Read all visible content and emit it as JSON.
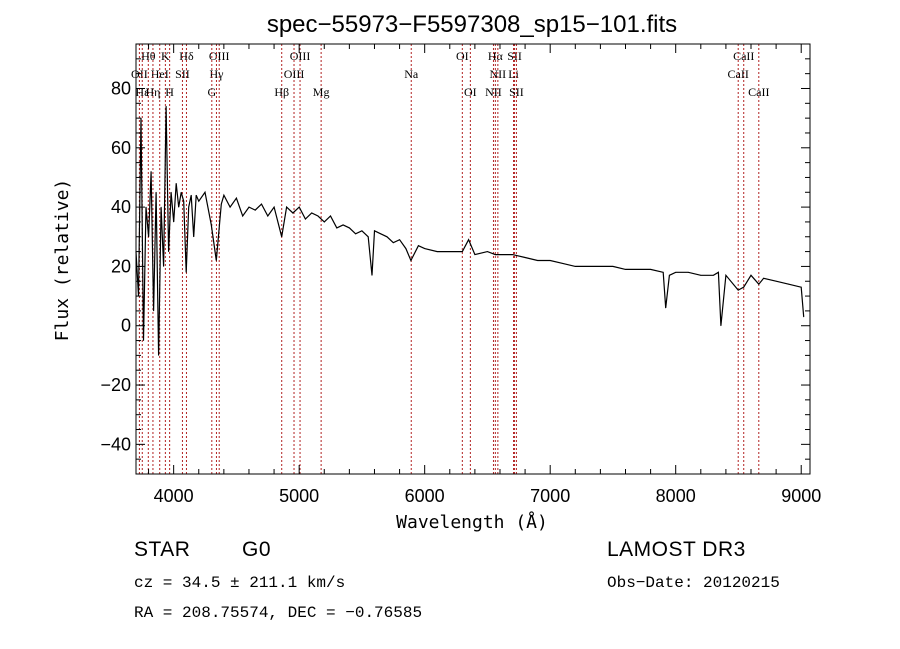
{
  "chart_data": {
    "type": "line",
    "title": "spec−55973−F5597308_sp15−101.fits",
    "xlabel": "Wavelength (Å)",
    "ylabel": "Flux (relative)",
    "xlim": [
      3700,
      9070
    ],
    "ylim": [
      -50,
      95
    ],
    "x_ticks": [
      4000,
      5000,
      6000,
      7000,
      8000,
      9000
    ],
    "x_tick_labels": [
      "4000",
      "5000",
      "6000",
      "7000",
      "8000",
      "9000"
    ],
    "y_ticks": [
      -40,
      -20,
      0,
      20,
      40,
      60,
      80
    ],
    "y_tick_labels": [
      "−40",
      "−20",
      "0",
      "20",
      "40",
      "60",
      "80"
    ],
    "grid": false,
    "series": [
      {
        "name": "flux",
        "x": [
          3700,
          3720,
          3740,
          3760,
          3780,
          3800,
          3820,
          3840,
          3860,
          3880,
          3900,
          3920,
          3940,
          3960,
          3980,
          4000,
          4020,
          4040,
          4060,
          4080,
          4100,
          4120,
          4140,
          4160,
          4180,
          4200,
          4250,
          4300,
          4340,
          4380,
          4400,
          4450,
          4500,
          4550,
          4600,
          4650,
          4700,
          4750,
          4800,
          4861,
          4900,
          4950,
          5000,
          5050,
          5100,
          5150,
          5200,
          5250,
          5300,
          5350,
          5400,
          5450,
          5500,
          5550,
          5580,
          5600,
          5650,
          5700,
          5750,
          5800,
          5850,
          5890,
          5950,
          6000,
          6100,
          6200,
          6300,
          6350,
          6400,
          6500,
          6563,
          6600,
          6700,
          6800,
          6900,
          7000,
          7100,
          7200,
          7300,
          7400,
          7500,
          7600,
          7700,
          7800,
          7900,
          7920,
          7950,
          8000,
          8100,
          8200,
          8300,
          8340,
          8360,
          8400,
          8498,
          8542,
          8600,
          8662,
          8700,
          8800,
          8900,
          9000,
          9020
        ],
        "y": [
          25,
          10,
          70,
          -5,
          40,
          30,
          52,
          5,
          45,
          -10,
          40,
          20,
          74,
          25,
          45,
          35,
          48,
          40,
          45,
          42,
          18,
          40,
          44,
          30,
          44,
          42,
          45,
          34,
          22,
          41,
          44,
          40,
          43,
          37,
          40,
          39,
          41,
          37,
          40,
          30,
          40,
          38,
          40,
          36,
          38,
          37,
          35,
          37,
          33,
          34,
          33,
          31,
          32,
          30,
          17,
          32,
          31,
          30,
          28,
          29,
          26,
          22,
          27,
          26,
          25,
          25,
          25,
          29,
          24,
          25,
          24,
          24,
          24,
          23,
          22,
          22,
          21,
          20,
          20,
          20,
          20,
          19,
          19,
          19,
          18,
          6,
          17,
          18,
          18,
          17,
          17,
          18,
          0,
          17,
          12,
          13,
          17,
          14,
          16,
          15,
          14,
          13,
          3
        ]
      }
    ],
    "line_markers": [
      {
        "name": "Hθ",
        "wavelength": 3798,
        "row": 0
      },
      {
        "name": "K",
        "wavelength": 3934,
        "row": 0
      },
      {
        "name": "Hδ",
        "wavelength": 4102,
        "row": 0
      },
      {
        "name": "OIII",
        "wavelength": 4363,
        "row": 0
      },
      {
        "name": "OIII",
        "wavelength": 5007,
        "row": 0
      },
      {
        "name": "OI",
        "wavelength": 6300,
        "row": 0
      },
      {
        "name": "Hα",
        "wavelength": 6563,
        "row": 0
      },
      {
        "name": "SII",
        "wavelength": 6716,
        "row": 0
      },
      {
        "name": "CaII",
        "wavelength": 8542,
        "row": 0
      },
      {
        "name": "OII",
        "wavelength": 3727,
        "row": 1
      },
      {
        "name": "HeI",
        "wavelength": 3889,
        "row": 1
      },
      {
        "name": "SII",
        "wavelength": 4070,
        "row": 1
      },
      {
        "name": "Hγ",
        "wavelength": 4341,
        "row": 1
      },
      {
        "name": "OIII",
        "wavelength": 4959,
        "row": 1
      },
      {
        "name": "Na",
        "wavelength": 5893,
        "row": 1
      },
      {
        "name": "NII",
        "wavelength": 6583,
        "row": 1
      },
      {
        "name": "Li",
        "wavelength": 6708,
        "row": 1
      },
      {
        "name": "CaII",
        "wavelength": 8498,
        "row": 1
      },
      {
        "name": "Hε",
        "wavelength": 3750,
        "row": 2
      },
      {
        "name": "Hη",
        "wavelength": 3835,
        "row": 2
      },
      {
        "name": "H",
        "wavelength": 3968,
        "row": 2
      },
      {
        "name": "G",
        "wavelength": 4304,
        "row": 2
      },
      {
        "name": "Hβ",
        "wavelength": 4861,
        "row": 2
      },
      {
        "name": "Mg",
        "wavelength": 5175,
        "row": 2
      },
      {
        "name": "OI",
        "wavelength": 6364,
        "row": 2
      },
      {
        "name": "NII",
        "wavelength": 6548,
        "row": 2
      },
      {
        "name": "SII",
        "wavelength": 6731,
        "row": 2
      },
      {
        "name": "CaII",
        "wavelength": 8662,
        "row": 2
      }
    ]
  },
  "info": {
    "object_class": "STAR",
    "subclass": "G0",
    "survey": "LAMOST DR3",
    "redshift": "cz = 34.5 ± 211.1 km/s",
    "obs_date": "Obs−Date: 20120215",
    "coords": "RA = 208.75574, DEC =  −0.76585"
  }
}
